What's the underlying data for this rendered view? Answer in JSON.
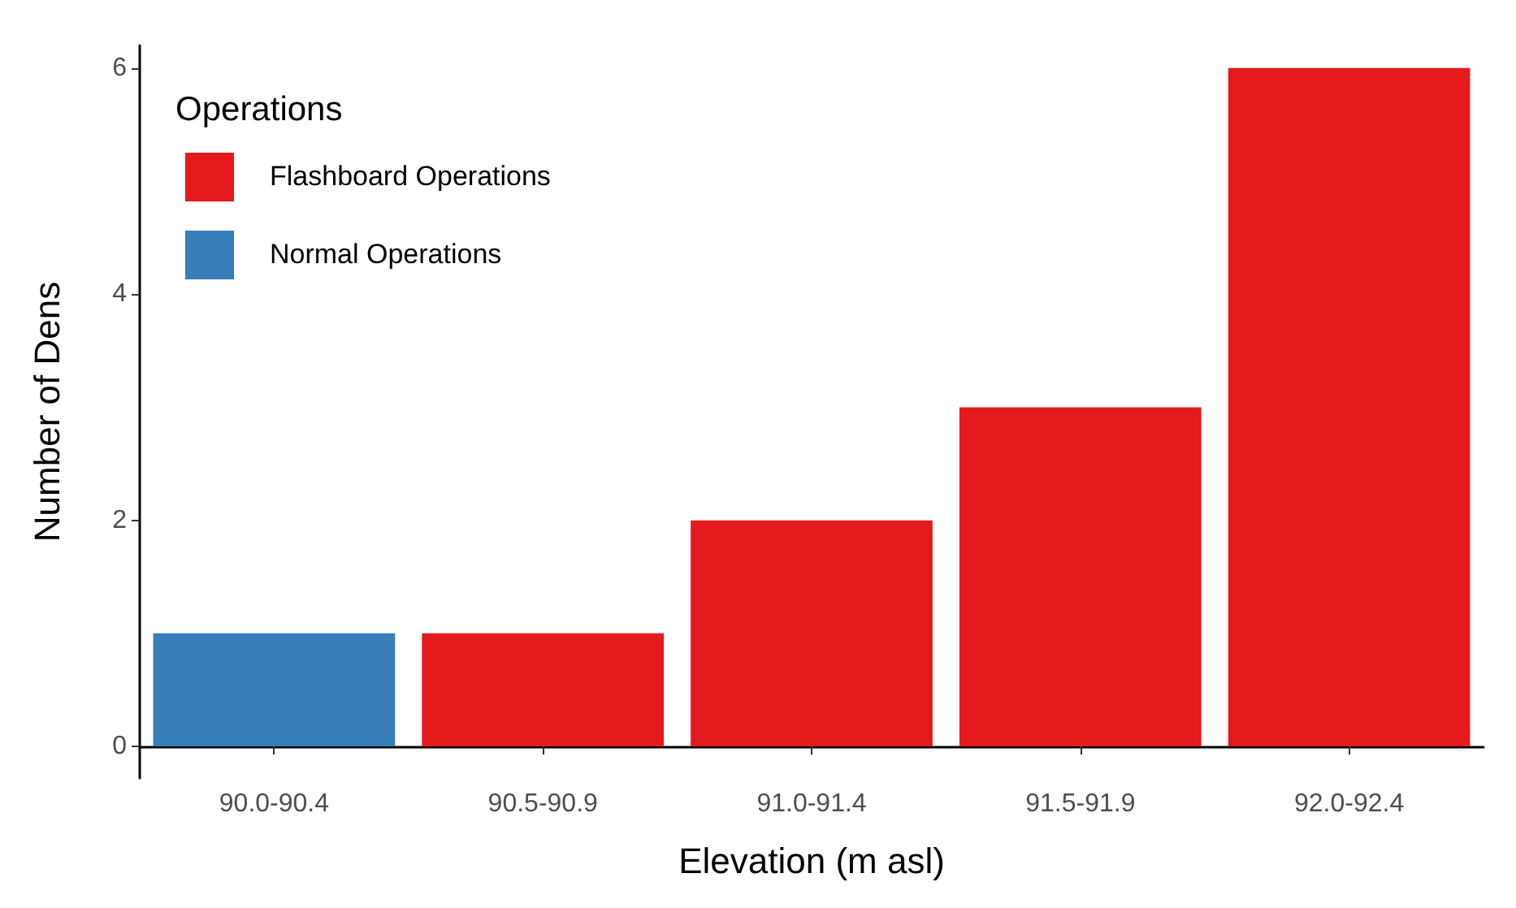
{
  "chart_data": {
    "type": "bar",
    "xlabel": "Elevation (m asl)",
    "ylabel": "Number of Dens",
    "legend_title": "Operations",
    "categories": [
      "90.0-90.4",
      "90.5-90.9",
      "91.0-91.4",
      "91.5-91.9",
      "92.0-92.4"
    ],
    "series": [
      {
        "name": "Flashboard Operations",
        "color": "#e41a1c",
        "values": [
          null,
          1,
          2,
          3,
          6
        ]
      },
      {
        "name": "Normal Operations",
        "color": "#377eb8",
        "values": [
          1,
          null,
          null,
          null,
          null
        ]
      }
    ],
    "stacked": true,
    "ylim": [
      -0.28,
      6.2
    ],
    "yticks": [
      0,
      2,
      4,
      6
    ],
    "grid": false,
    "legend": "top left"
  }
}
